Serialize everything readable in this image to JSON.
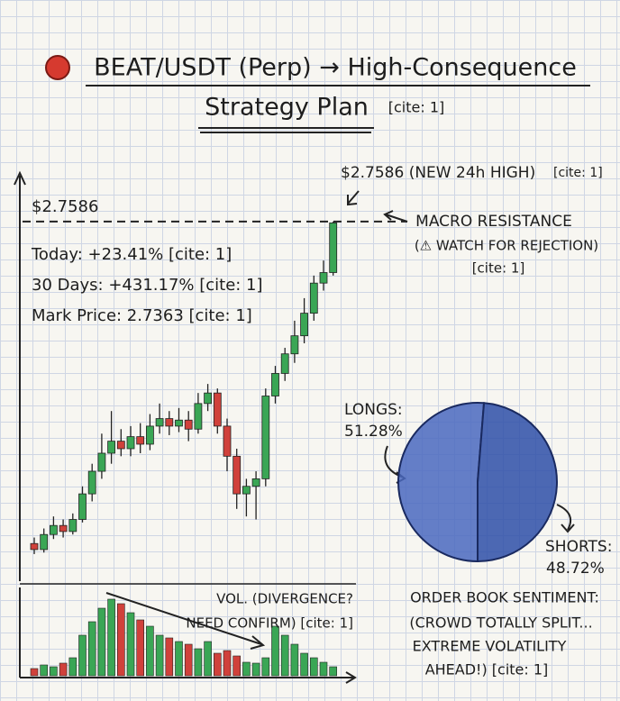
{
  "title_line1": "BEAT/USDT (Perp) → High-Consequence",
  "title_line2": "Strategy Plan",
  "title_cite": "[cite: 1]",
  "chart_data": [
    {
      "type": "candlestick",
      "open": [
        0.62,
        0.58,
        0.68,
        0.74,
        0.7,
        0.78,
        0.95,
        1.1,
        1.22,
        1.3,
        1.25,
        1.33,
        1.28,
        1.4,
        1.45,
        1.4,
        1.44,
        1.38,
        1.55,
        1.62,
        1.4,
        1.2,
        0.95,
        1.0,
        1.05,
        1.6,
        1.75,
        1.88,
        2.0,
        2.15,
        2.35,
        2.42
      ],
      "close": [
        0.58,
        0.68,
        0.74,
        0.7,
        0.78,
        0.95,
        1.1,
        1.22,
        1.3,
        1.25,
        1.33,
        1.28,
        1.4,
        1.45,
        1.4,
        1.44,
        1.38,
        1.55,
        1.62,
        1.4,
        1.2,
        0.95,
        1.0,
        1.05,
        1.6,
        1.75,
        1.88,
        2.0,
        2.15,
        2.35,
        2.42,
        2.75
      ],
      "high": [
        0.66,
        0.72,
        0.8,
        0.78,
        0.82,
        1.0,
        1.15,
        1.35,
        1.5,
        1.38,
        1.4,
        1.42,
        1.48,
        1.55,
        1.5,
        1.52,
        1.5,
        1.62,
        1.68,
        1.65,
        1.45,
        1.25,
        1.05,
        1.1,
        1.65,
        1.8,
        1.92,
        2.1,
        2.25,
        2.4,
        2.5,
        2.7586
      ],
      "low": [
        0.55,
        0.56,
        0.65,
        0.66,
        0.68,
        0.76,
        0.9,
        1.05,
        1.15,
        1.2,
        1.2,
        1.22,
        1.24,
        1.35,
        1.34,
        1.36,
        1.3,
        1.35,
        1.5,
        1.35,
        1.1,
        0.85,
        0.8,
        0.78,
        1.0,
        1.55,
        1.7,
        1.82,
        1.95,
        2.1,
        2.3,
        2.4
      ],
      "volume": [
        8,
        12,
        10,
        14,
        20,
        45,
        60,
        75,
        85,
        80,
        70,
        62,
        55,
        45,
        42,
        38,
        35,
        30,
        38,
        25,
        28,
        22,
        15,
        14,
        20,
        55,
        45,
        35,
        25,
        20,
        15,
        10
      ],
      "up_color": "#3aa655",
      "down_color": "#d0413b",
      "ylim": [
        0.4,
        2.8
      ],
      "yticks": [
        {
          "value": 2.7586,
          "label": "$2.7586"
        }
      ],
      "volume_ylim": [
        0,
        100
      ],
      "high_note": "$2.7586 (NEW 24h HIGH)",
      "high_cite": "[cite: 1]",
      "resistance": [
        "MACRO RESISTANCE",
        "(⚠ WATCH FOR REJECTION)",
        "[cite: 1]"
      ],
      "stats": [
        "Today: +23.41% [cite: 1]",
        "30 Days: +431.17% [cite: 1]",
        "Mark Price: 2.7363 [cite: 1]"
      ],
      "volume_note": [
        "VOL. (DIVERGENCE?",
        "NEED CONFIRM) [cite: 1]"
      ]
    },
    {
      "type": "pie",
      "categories": [
        "LONGS:",
        "SHORTS:"
      ],
      "values": [
        51.28,
        48.72
      ],
      "value_labels": [
        "51.28%",
        "48.72%"
      ],
      "colors": [
        "#4a68c0",
        "#2e4fa8"
      ],
      "note": [
        "ORDER BOOK SENTIMENT:",
        "(CROWD TOTALLY SPLIT...",
        "EXTREME VOLATILITY",
        "AHEAD!) [cite: 1]"
      ]
    }
  ]
}
